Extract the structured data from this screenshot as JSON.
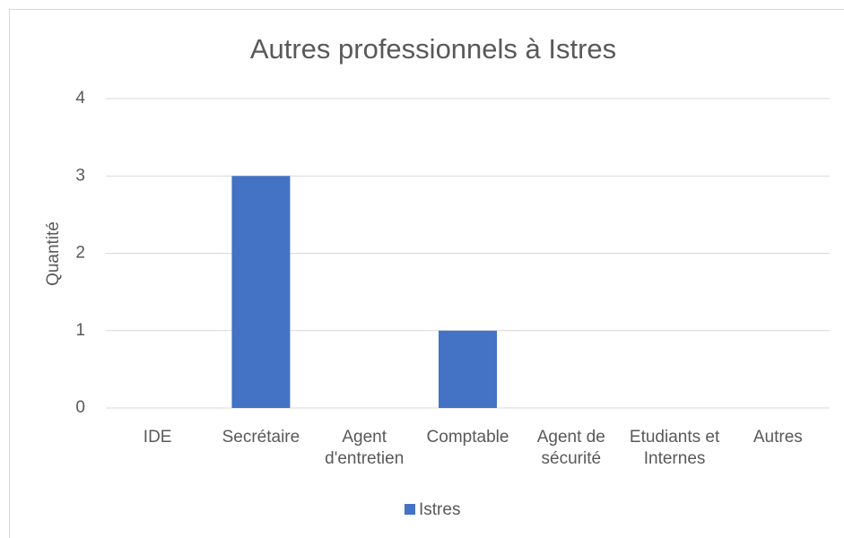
{
  "chart_data": {
    "type": "bar",
    "title": "Autres professionnels à Istres",
    "y_label": "Quantité",
    "categories": [
      "IDE",
      "Secrétaire",
      "Agent d'entretien",
      "Comptable",
      "Agent de sécurité",
      "Etudiants et Internes",
      "Autres"
    ],
    "series": [
      {
        "name": "Istres",
        "color": "#4472c4",
        "values": [
          0,
          3,
          0,
          1,
          0,
          0,
          0
        ]
      }
    ],
    "ylim": [
      0,
      4
    ],
    "yticks": [
      0,
      1,
      2,
      3,
      4
    ],
    "grid": true,
    "legend": "bottom"
  }
}
